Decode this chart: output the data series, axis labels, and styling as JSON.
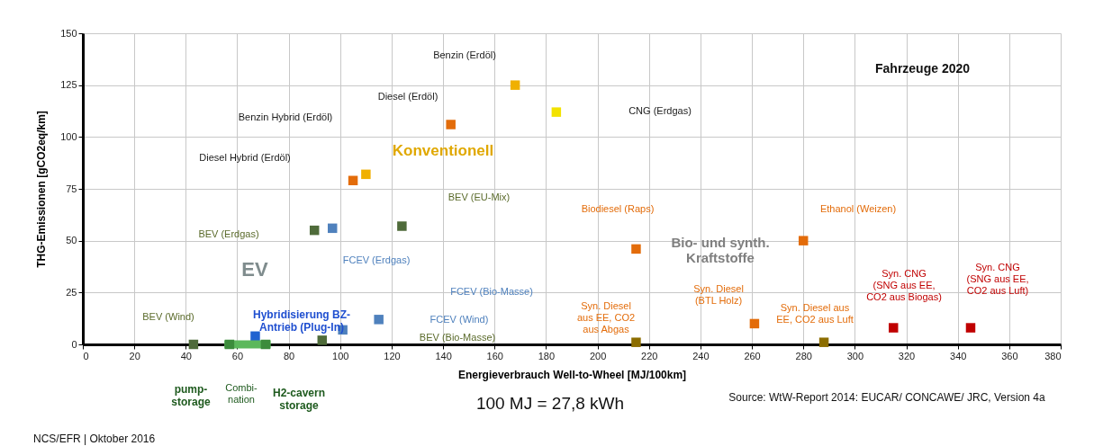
{
  "chart_data": {
    "type": "scatter",
    "title": "Fahrzeuge 2020",
    "xlabel": "Energieverbrauch Well-to-Wheel [MJ/100km]",
    "ylabel": "THG-Emissionen [gCO2eq/km]",
    "xlim": [
      0,
      380
    ],
    "ylim": [
      0,
      150
    ],
    "xticks": [
      0,
      20,
      40,
      60,
      80,
      100,
      120,
      140,
      160,
      180,
      200,
      220,
      240,
      260,
      280,
      300,
      320,
      340,
      360,
      380
    ],
    "yticks": [
      0,
      25,
      50,
      75,
      100,
      125,
      150
    ],
    "grid": true,
    "marker": "square",
    "series": [
      {
        "color": "#f0b000",
        "x": [
          168,
          110
        ],
        "values": [
          125,
          82
        ]
      },
      {
        "color": "#e36c0a",
        "x": [
          143,
          105,
          215,
          280,
          261
        ],
        "values": [
          106,
          79,
          46,
          50,
          10
        ]
      },
      {
        "color": "#f2e200",
        "x": [
          184
        ],
        "values": [
          112
        ]
      },
      {
        "color": "#4f6b3a",
        "x": [
          90,
          124,
          43,
          93
        ],
        "values": [
          55,
          57,
          0,
          2
        ]
      },
      {
        "color": "#4f81bd",
        "x": [
          97,
          101,
          115
        ],
        "values": [
          56,
          7,
          12
        ]
      },
      {
        "color": "#1f62d0",
        "x": [
          67
        ],
        "values": [
          4
        ]
      },
      {
        "color": "#8c6d00",
        "x": [
          215,
          288
        ],
        "values": [
          1,
          1
        ]
      },
      {
        "color": "#c00000",
        "x": [
          315,
          345
        ],
        "values": [
          8,
          8
        ]
      },
      {
        "type": "line",
        "line_style": "solid",
        "marker": "none",
        "color": "#5cb85c",
        "x": [
          55,
          73
        ],
        "values": [
          0,
          0
        ]
      },
      {
        "color": "#3c8c3c",
        "x": [
          57,
          71
        ],
        "values": [
          0,
          0
        ]
      }
    ],
    "annotations": [
      "Benzin (Erdöl)",
      "Diesel (Erdöl)",
      "CNG (Erdgas)",
      "Benzin Hybrid (Erdöl)",
      "Diesel Hybrid (Erdöl)",
      "BEV (EU-Mix)",
      "BEV (Erdgas)",
      "FCEV (Erdgas)",
      "FCEV (Bio-Masse)",
      "FCEV (Wind)",
      "BEV (Bio-Masse)",
      "BEV (Wind)",
      "Hybridisierung BZ-\nAntrieb (Plug-In)",
      "Biodiesel (Raps)",
      "Ethanol (Weizen)",
      "Syn. Diesel\n(BTL Holz)",
      "Syn. Diesel\naus EE, CO2\naus Abgas",
      "Syn. Diesel aus\nEE, CO2 aus Luft",
      "Syn. CNG\n(SNG aus EE,\nCO2 aus Biogas)",
      "Syn. CNG\n(SNG aus EE,\nCO2 aus Luft)",
      "Konventionell",
      "EV",
      "Bio- und synth.\nKraftstoffe",
      "pump-\nstorage",
      "Combi-\nnation",
      "H2-cavern\nstorage",
      "100 MJ =  27,8 kWh",
      "Source: WtW-Report 2014: EUCAR/ CONCAWE/ JRC, Version 4a",
      "NCS/EFR | Oktober 2016"
    ]
  }
}
